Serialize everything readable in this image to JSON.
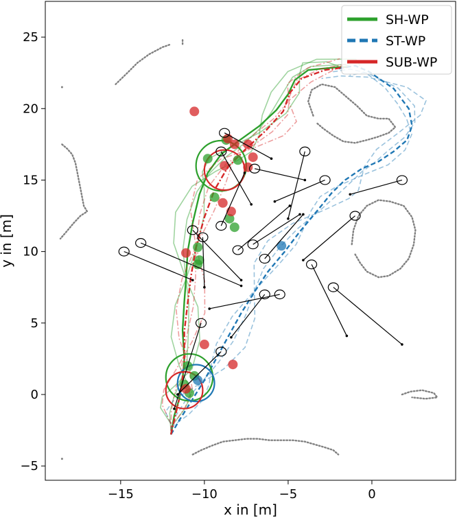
{
  "chart_data": {
    "type": "scatter",
    "title": "",
    "xlabel": "x in [m]",
    "ylabel": "y in [m]",
    "xlim": [
      -19.5,
      5.0
    ],
    "ylim": [
      -6.0,
      27.5
    ],
    "xticks": [
      -15,
      -10,
      -5,
      0
    ],
    "yticks": [
      -5,
      0,
      5,
      10,
      15,
      20,
      25
    ],
    "grid": false,
    "legend_position": "top-right",
    "colors": {
      "green": "#2ca02c",
      "blue": "#1f77b4",
      "red": "#d62728",
      "gray": "#808080",
      "black": "#000000"
    },
    "legend": [
      {
        "name": "SH-WP",
        "color": "#2ca02c",
        "style": "solid"
      },
      {
        "name": "ST-WP",
        "color": "#1f77b4",
        "style": "dashed"
      },
      {
        "name": "SUB-WP",
        "color": "#d62728",
        "style": "dashdot"
      }
    ],
    "obstacle_clouds": [
      [
        [
          -18.5,
          17.5
        ],
        [
          -18.2,
          17.2
        ],
        [
          -17.9,
          16.8
        ],
        [
          -17.7,
          16.2
        ],
        [
          -17.6,
          15.6
        ],
        [
          -17.5,
          15.0
        ],
        [
          -17.4,
          14.4
        ],
        [
          -17.3,
          13.8
        ],
        [
          -17.2,
          13.2
        ],
        [
          -17.0,
          12.8
        ],
        [
          -17.4,
          12.5
        ],
        [
          -17.8,
          12.0
        ],
        [
          -18.3,
          11.3
        ],
        [
          -18.6,
          10.9
        ]
      ],
      [
        [
          -15.3,
          21.7
        ],
        [
          -14.6,
          22.5
        ],
        [
          -14.0,
          23.2
        ],
        [
          -13.3,
          23.8
        ],
        [
          -12.5,
          24.3
        ],
        [
          -12.0,
          24.5
        ]
      ],
      [
        [
          -18.5,
          21.5
        ]
      ],
      [
        [
          -11.3,
          24.8
        ],
        [
          -11.3,
          24.5
        ]
      ],
      [
        [
          -3.5,
          19.5
        ],
        [
          -3.8,
          20.5
        ],
        [
          -3.6,
          21.3
        ],
        [
          -3.0,
          21.7
        ],
        [
          -2.2,
          21.5
        ],
        [
          -1.5,
          20.8
        ],
        [
          -0.9,
          20.2
        ],
        [
          -0.3,
          19.5
        ],
        [
          0.4,
          19.3
        ],
        [
          1.0,
          19.3
        ],
        [
          1.4,
          18.7
        ],
        [
          1.0,
          18.3
        ],
        [
          0.3,
          18.0
        ],
        [
          -0.3,
          17.8
        ],
        [
          -1.0,
          17.6
        ],
        [
          -1.7,
          17.7
        ],
        [
          -2.3,
          18.1
        ],
        [
          -2.9,
          18.6
        ],
        [
          -3.3,
          19.0
        ]
      ],
      [
        [
          -1.2,
          10.5
        ],
        [
          -1.1,
          11.5
        ],
        [
          -0.8,
          12.5
        ],
        [
          -0.3,
          13.2
        ],
        [
          0.4,
          13.6
        ],
        [
          1.1,
          13.5
        ],
        [
          1.9,
          13.2
        ],
        [
          2.4,
          12.4
        ],
        [
          2.6,
          11.5
        ],
        [
          2.5,
          10.5
        ],
        [
          2.2,
          9.5
        ],
        [
          1.7,
          8.8
        ],
        [
          1.0,
          8.3
        ],
        [
          0.4,
          8.2
        ],
        [
          -0.3,
          8.6
        ],
        [
          -0.7,
          9.2
        ],
        [
          -1.0,
          9.8
        ]
      ],
      [
        [
          -10.7,
          -4.2
        ],
        [
          -10.2,
          -3.9
        ],
        [
          -9.6,
          -3.6
        ],
        [
          -8.9,
          -3.3
        ],
        [
          -8.2,
          -3.2
        ],
        [
          -7.5,
          -3.1
        ],
        [
          -6.8,
          -3.1
        ],
        [
          -6.1,
          -3.2
        ],
        [
          -5.4,
          -3.2
        ],
        [
          -4.7,
          -3.2
        ],
        [
          -4.0,
          -3.3
        ],
        [
          -3.4,
          -3.5
        ],
        [
          -2.8,
          -3.7
        ],
        [
          -2.3,
          -3.9
        ],
        [
          -2.0,
          -4.2
        ]
      ],
      [
        [
          1.8,
          0.0
        ],
        [
          2.3,
          0.2
        ],
        [
          3.0,
          0.3
        ],
        [
          3.7,
          0.1
        ],
        [
          3.9,
          -0.2
        ],
        [
          3.2,
          -0.3
        ],
        [
          2.4,
          -0.2
        ]
      ],
      [
        [
          -18.5,
          -4.5
        ]
      ]
    ],
    "series": [
      {
        "name": "SH-WP",
        "color": "#2ca02c",
        "path": [
          [
            -12.0,
            -2.8
          ],
          [
            -11.8,
            -1.5
          ],
          [
            -11.5,
            -0.3
          ],
          [
            -11.3,
            1.0
          ],
          [
            -11.2,
            2.5
          ],
          [
            -11.3,
            4.5
          ],
          [
            -11.2,
            6.5
          ],
          [
            -11.1,
            8.0
          ],
          [
            -11.0,
            10.0
          ],
          [
            -10.7,
            12.0
          ],
          [
            -10.3,
            14.0
          ],
          [
            -9.8,
            15.5
          ],
          [
            -9.0,
            16.8
          ],
          [
            -8.0,
            17.7
          ],
          [
            -6.7,
            18.8
          ],
          [
            -5.7,
            19.9
          ],
          [
            -5.0,
            21.0
          ],
          [
            -4.6,
            22.0
          ],
          [
            -3.8,
            22.7
          ],
          [
            -2.0,
            22.9
          ],
          [
            -1.5,
            22.9
          ]
        ]
      },
      {
        "name": "ST-WP",
        "color": "#1f77b4",
        "path": [
          [
            -12.0,
            -2.8
          ],
          [
            -11.5,
            -1.8
          ],
          [
            -10.8,
            -0.5
          ],
          [
            -10.0,
            1.0
          ],
          [
            -9.3,
            2.5
          ],
          [
            -8.6,
            4.0
          ],
          [
            -7.8,
            5.7
          ],
          [
            -7.0,
            7.2
          ],
          [
            -6.2,
            8.6
          ],
          [
            -5.2,
            10.0
          ],
          [
            -4.3,
            11.4
          ],
          [
            -3.3,
            12.8
          ],
          [
            -2.4,
            14.1
          ],
          [
            -1.6,
            15.0
          ],
          [
            -0.6,
            15.8
          ],
          [
            0.4,
            16.3
          ],
          [
            1.3,
            17.0
          ],
          [
            2.1,
            17.8
          ],
          [
            2.4,
            18.8
          ],
          [
            2.2,
            20.0
          ],
          [
            1.3,
            21.4
          ],
          [
            -0.2,
            22.6
          ],
          [
            -1.0,
            23.0
          ],
          [
            -2.0,
            22.8
          ]
        ]
      },
      {
        "name": "SUB-WP",
        "color": "#d62728",
        "path": [
          [
            -12.0,
            -2.8
          ],
          [
            -11.7,
            -1.3
          ],
          [
            -11.4,
            0.2
          ],
          [
            -11.2,
            2.2
          ],
          [
            -11.2,
            4.4
          ],
          [
            -11.0,
            6.4
          ],
          [
            -10.8,
            8.3
          ],
          [
            -10.5,
            10.3
          ],
          [
            -10.0,
            12.4
          ],
          [
            -9.4,
            14.3
          ],
          [
            -8.6,
            15.9
          ],
          [
            -7.6,
            17.1
          ],
          [
            -6.3,
            18.5
          ],
          [
            -5.3,
            19.8
          ],
          [
            -4.9,
            21.1
          ],
          [
            -4.2,
            22.1
          ],
          [
            -2.8,
            22.7
          ],
          [
            -1.5,
            22.9
          ]
        ]
      }
    ],
    "pedestrians": [
      [
        [
          -8.8,
          18.3
        ],
        [
          -6.0,
          16.5
        ]
      ],
      [
        [
          -9.0,
          17.0
        ],
        [
          -7.2,
          13.3
        ]
      ],
      [
        [
          -4.0,
          17.0
        ],
        [
          -5.0,
          12.3
        ]
      ],
      [
        [
          -7.0,
          15.8
        ],
        [
          -4.0,
          15.0
        ]
      ],
      [
        [
          -2.8,
          15.0
        ],
        [
          -5.8,
          13.5
        ]
      ],
      [
        [
          1.8,
          15.0
        ],
        [
          -1.3,
          14.0
        ]
      ],
      [
        [
          -9.0,
          11.8
        ],
        [
          -7.6,
          15.5
        ]
      ],
      [
        [
          -10.7,
          11.5
        ],
        [
          -7.8,
          8.0
        ]
      ],
      [
        [
          -10.1,
          11.0
        ],
        [
          -10.0,
          7.5
        ]
      ],
      [
        [
          -13.8,
          10.6
        ],
        [
          -7.8,
          7.6
        ]
      ],
      [
        [
          -14.8,
          10.0
        ],
        [
          -10.7,
          8.0
        ]
      ],
      [
        [
          -7.1,
          10.5
        ],
        [
          -4.3,
          12.6
        ]
      ],
      [
        [
          -8.0,
          10.1
        ],
        [
          -4.9,
          13.2
        ]
      ],
      [
        [
          -6.4,
          9.5
        ],
        [
          -4.1,
          12.6
        ]
      ],
      [
        [
          -1.0,
          12.5
        ],
        [
          -4.1,
          9.4
        ]
      ],
      [
        [
          -3.6,
          9.1
        ],
        [
          -1.5,
          4.1
        ]
      ],
      [
        [
          -2.3,
          7.5
        ],
        [
          1.8,
          3.5
        ]
      ],
      [
        [
          -6.4,
          7.0
        ],
        [
          -8.4,
          4.0
        ]
      ],
      [
        [
          -5.5,
          7.0
        ],
        [
          -9.7,
          6.0
        ]
      ],
      [
        [
          -10.2,
          5.0
        ],
        [
          -11.8,
          -1.0
        ]
      ],
      [
        [
          -9.0,
          3.0
        ],
        [
          -11.6,
          0.0
        ]
      ]
    ],
    "markers_green": [
      [
        -8.5,
        12.3
      ],
      [
        -8.2,
        11.7
      ],
      [
        -9.4,
        13.8
      ],
      [
        -10.4,
        10.3
      ],
      [
        -10.4,
        9.1
      ],
      [
        -10.3,
        9.4
      ],
      [
        -9.8,
        16.5
      ],
      [
        -8.0,
        16.4
      ],
      [
        -8.7,
        17.8
      ],
      [
        -11.0,
        2.0
      ],
      [
        -10.6,
        1.3
      ],
      [
        -11.2,
        0.7
      ],
      [
        -10.9,
        0.1
      ]
    ],
    "markers_red": [
      [
        -10.6,
        19.8
      ],
      [
        -8.2,
        17.5
      ],
      [
        -8.6,
        17.9
      ],
      [
        -7.4,
        17.5
      ],
      [
        -7.1,
        16.6
      ],
      [
        -8.8,
        16.0
      ],
      [
        -7.4,
        15.9
      ],
      [
        -8.9,
        13.4
      ],
      [
        -8.4,
        12.8
      ],
      [
        -11.1,
        9.9
      ],
      [
        -10.0,
        3.5
      ],
      [
        -8.3,
        2.1
      ],
      [
        -11.1,
        0.4
      ]
    ],
    "markers_blue": [
      [
        -5.4,
        10.4
      ],
      [
        -10.4,
        1.0
      ]
    ],
    "waypoint_rings": [
      {
        "color": "#2ca02c",
        "center": [
          -9.0,
          16.0
        ],
        "radius": 1.5
      },
      {
        "color": "#d62728",
        "center": [
          -8.8,
          15.7
        ],
        "radius": 1.2
      },
      {
        "color": "#2ca02c",
        "center": [
          -10.9,
          1.2
        ],
        "radius": 1.4
      },
      {
        "color": "#1f77b4",
        "center": [
          -10.5,
          0.8
        ],
        "radius": 1.1
      },
      {
        "color": "#d62728",
        "center": [
          -11.2,
          0.3
        ],
        "radius": 1.1
      }
    ]
  }
}
